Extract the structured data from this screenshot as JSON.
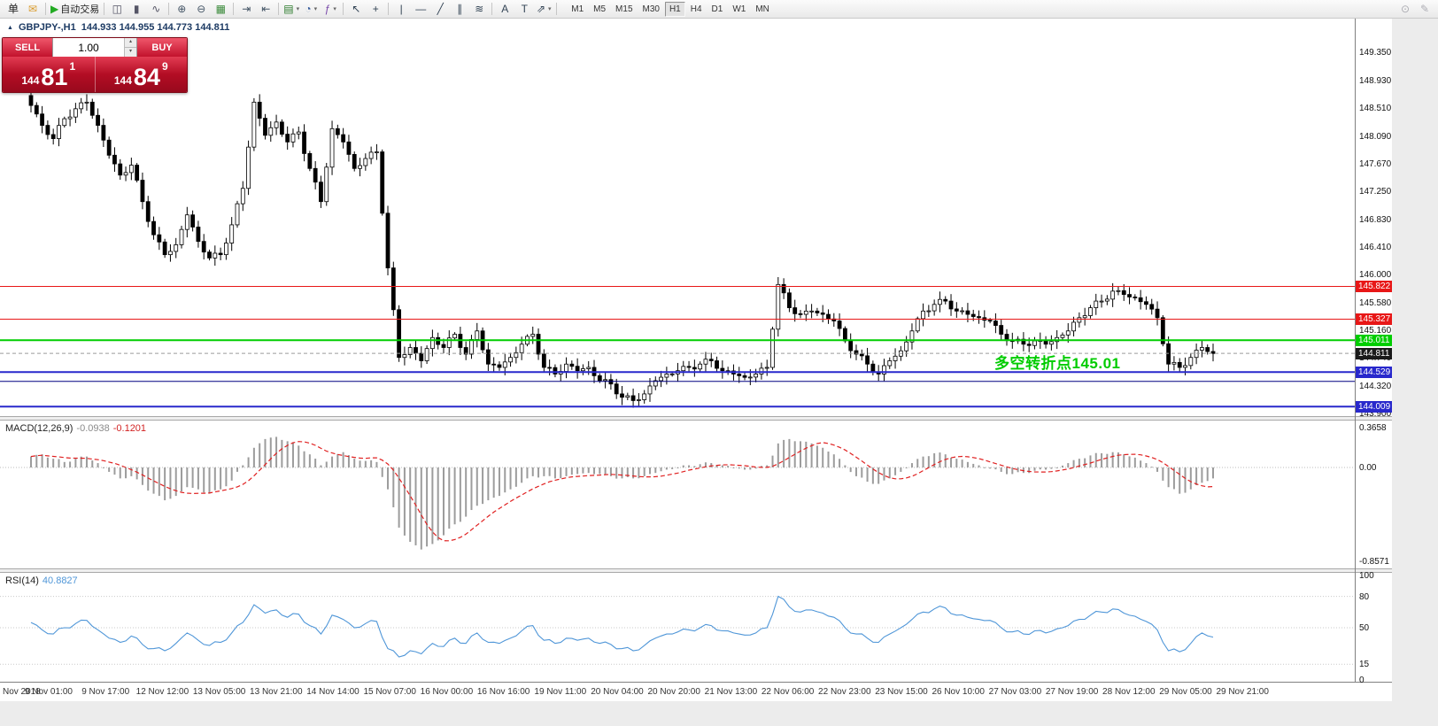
{
  "toolbar": {
    "items": [
      {
        "name": "new-order-button",
        "icon": "单",
        "color": "#222"
      },
      {
        "name": "mail-button",
        "icon": "✉",
        "color": "#d99a2b"
      },
      {
        "sep": true
      },
      {
        "name": "autotrading-button",
        "icon": "▶",
        "color": "#22aa22",
        "label": "自动交易"
      },
      {
        "sep": true
      },
      {
        "name": "bar-chart-button",
        "icon": "◫",
        "color": "#556"
      },
      {
        "name": "candlestick-chart-button",
        "icon": "▮",
        "color": "#556"
      },
      {
        "name": "line-chart-button",
        "icon": "∿",
        "color": "#556"
      },
      {
        "sep": true
      },
      {
        "name": "zoom-in-button",
        "icon": "⊕",
        "color": "#456"
      },
      {
        "name": "zoom-out-button",
        "icon": "⊖",
        "color": "#456"
      },
      {
        "name": "tile-windows-button",
        "icon": "▦",
        "color": "#3a8a3a"
      },
      {
        "sep": true
      },
      {
        "name": "auto-scroll-button",
        "icon": "⇥",
        "color": "#456"
      },
      {
        "name": "chart-shift-button",
        "icon": "⇤",
        "color": "#456"
      },
      {
        "sep": true
      },
      {
        "name": "new-chart-button",
        "icon": "▤",
        "color": "#2a7a2a",
        "dropdown": true
      },
      {
        "name": "profiles-button",
        "icon": "◔",
        "color": "#345a9a",
        "dropdown": true
      },
      {
        "name": "indicators-button",
        "icon": "ƒ",
        "color": "#7a4aaa",
        "dropdown": true
      },
      {
        "sep": true
      },
      {
        "name": "cursor-button",
        "icon": "↖",
        "color": "#345"
      },
      {
        "name": "crosshair-button",
        "icon": "+",
        "color": "#345"
      },
      {
        "sep": true
      },
      {
        "name": "vertical-line-button",
        "icon": "|",
        "color": "#345"
      },
      {
        "name": "horizontal-line-button",
        "icon": "—",
        "color": "#345"
      },
      {
        "name": "trendline-button",
        "icon": "╱",
        "color": "#345"
      },
      {
        "name": "equidistant-channel-button",
        "icon": "∥",
        "color": "#345"
      },
      {
        "name": "fibonacci-button",
        "icon": "≋",
        "color": "#345"
      },
      {
        "sep": true
      },
      {
        "name": "text-button",
        "icon": "A",
        "color": "#345"
      },
      {
        "name": "text-label-button",
        "icon": "T",
        "color": "#345"
      },
      {
        "name": "arrows-button",
        "icon": "⇗",
        "color": "#345",
        "dropdown": true
      },
      {
        "sep": true
      }
    ],
    "timeframes": [
      "M1",
      "M5",
      "M15",
      "M30",
      "H1",
      "H4",
      "D1",
      "W1",
      "MN"
    ],
    "active_timeframe": "H1",
    "right_items": [
      {
        "name": "search-button",
        "icon": "⊙"
      },
      {
        "name": "quick-edit-button",
        "icon": "✎"
      }
    ]
  },
  "chart": {
    "title_symbol": "GBPJPY-,H1",
    "title_ohlc": "144.933 144.955 144.773 144.811",
    "annotation": "多空转折点145.01"
  },
  "trade_panel": {
    "sell_label": "SELL",
    "buy_label": "BUY",
    "volume": "1.00",
    "sell_price": {
      "prefix": "144",
      "main": "81",
      "sup": "1"
    },
    "buy_price": {
      "prefix": "144",
      "main": "84",
      "sup": "9"
    }
  },
  "macd_panel": {
    "title": "MACD(12,26,9)",
    "main_value": "-0.0938",
    "signal_value": "-0.1201"
  },
  "rsi_panel": {
    "title": "RSI(14)",
    "value": "40.8827"
  },
  "chart_data": {
    "type": "candlestick",
    "symbol": "GBPJPY-",
    "timeframe": "H1",
    "price_axis": [
      "149.350",
      "148.930",
      "148.510",
      "148.090",
      "147.670",
      "147.250",
      "146.830",
      "146.410",
      "146.000",
      "145.580",
      "145.160",
      "144.740",
      "144.320",
      "143.900"
    ],
    "x_axis": [
      "Nov 2018",
      "9 Nov 01:00",
      "9 Nov 17:00",
      "12 Nov 12:00",
      "13 Nov 05:00",
      "13 Nov 21:00",
      "14 Nov 14:00",
      "15 Nov 07:00",
      "16 Nov 00:00",
      "16 Nov 16:00",
      "19 Nov 11:00",
      "20 Nov 04:00",
      "20 Nov 20:00",
      "21 Nov 13:00",
      "22 Nov 06:00",
      "22 Nov 23:00",
      "23 Nov 15:00",
      "26 Nov 10:00",
      "27 Nov 03:00",
      "27 Nov 19:00",
      "28 Nov 12:00",
      "29 Nov 05:00",
      "29 Nov 21:00"
    ],
    "closes": [
      148.55,
      148.25,
      148.05,
      148.35,
      148.5,
      148.6,
      148.25,
      147.8,
      147.5,
      147.65,
      147.1,
      146.6,
      146.3,
      146.45,
      146.9,
      146.5,
      146.25,
      146.3,
      146.75,
      147.3,
      148.6,
      148.1,
      148.3,
      148.0,
      148.15,
      147.6,
      147.1,
      148.2,
      148.0,
      147.6,
      147.75,
      147.85,
      146.1,
      144.75,
      144.9,
      144.7,
      145.05,
      144.9,
      145.1,
      144.8,
      145.15,
      144.65,
      144.6,
      144.75,
      144.95,
      145.1,
      144.6,
      144.5,
      144.65,
      144.55,
      144.6,
      144.4,
      144.35,
      144.15,
      144.1,
      144.2,
      144.4,
      144.5,
      144.55,
      144.6,
      144.65,
      144.7,
      144.55,
      144.5,
      144.45,
      144.5,
      144.6,
      145.85,
      145.5,
      145.4,
      145.45,
      145.4,
      145.3,
      145.0,
      144.8,
      144.65,
      144.5,
      144.7,
      144.85,
      145.15,
      145.45,
      145.55,
      145.6,
      145.45,
      145.4,
      145.35,
      145.3,
      145.1,
      145.0,
      144.95,
      145.0,
      144.95,
      145.05,
      145.15,
      145.35,
      145.5,
      145.6,
      145.75,
      145.7,
      145.65,
      145.55,
      145.35,
      144.65,
      144.6,
      144.75,
      144.9,
      144.81
    ],
    "levels": [
      {
        "value": 145.822,
        "color": "#e81717",
        "width": 1,
        "label": "145.822",
        "label_bg": "#e81717",
        "label_color": "#fff"
      },
      {
        "value": 145.327,
        "color": "#e81717",
        "width": 1,
        "label": "145.327",
        "label_bg": "#e81717",
        "label_color": "#fff"
      },
      {
        "value": 145.011,
        "color": "#00ce00",
        "width": 2,
        "label": "145.011",
        "label_bg": "#00ce00",
        "label_color": "#fff"
      },
      {
        "value": 144.811,
        "color": "#9a9a9a",
        "width": 1,
        "dash": true,
        "label": "144.811",
        "label_bg": "#1a1a1a",
        "label_color": "#fff"
      },
      {
        "value": 144.529,
        "color": "#2828cc",
        "width": 2,
        "label": "144.529",
        "label_bg": "#2828cc",
        "label_color": "#fff"
      },
      {
        "value": 144.39,
        "color": "#000080",
        "width": 1
      },
      {
        "value": 144.009,
        "color": "#2828cc",
        "width": 2,
        "label": "144.009",
        "label_bg": "#2828cc",
        "label_color": "#fff"
      }
    ],
    "macd": {
      "params": "12,26,9",
      "axis": [
        {
          "text": "0.3658",
          "value": 0.3658
        },
        {
          "text": "0.00",
          "value": 0
        },
        {
          "text": "-0.8571",
          "value": -0.8571
        }
      ],
      "values": [
        0.1,
        0.12,
        0.08,
        0.05,
        0.08,
        0.1,
        0.04,
        -0.04,
        -0.1,
        -0.08,
        -0.16,
        -0.24,
        -0.3,
        -0.26,
        -0.18,
        -0.2,
        -0.24,
        -0.2,
        -0.12,
        0.02,
        0.18,
        0.26,
        0.28,
        0.24,
        0.2,
        0.12,
        0.02,
        0.1,
        0.14,
        0.08,
        0.06,
        0.05,
        -0.2,
        -0.55,
        -0.68,
        -0.75,
        -0.7,
        -0.62,
        -0.52,
        -0.45,
        -0.35,
        -0.3,
        -0.26,
        -0.2,
        -0.14,
        -0.08,
        -0.08,
        -0.1,
        -0.08,
        -0.06,
        -0.05,
        -0.06,
        -0.08,
        -0.1,
        -0.1,
        -0.08,
        -0.05,
        -0.02,
        0.0,
        0.02,
        0.03,
        0.04,
        0.02,
        0.0,
        -0.02,
        -0.01,
        0.02,
        0.22,
        0.26,
        0.24,
        0.22,
        0.18,
        0.12,
        0.02,
        -0.08,
        -0.13,
        -0.15,
        -0.1,
        -0.04,
        0.04,
        0.1,
        0.13,
        0.12,
        0.08,
        0.05,
        0.02,
        -0.01,
        -0.04,
        -0.06,
        -0.05,
        -0.03,
        -0.02,
        0.0,
        0.04,
        0.08,
        0.11,
        0.13,
        0.14,
        0.12,
        0.09,
        0.04,
        -0.04,
        -0.18,
        -0.24,
        -0.2,
        -0.14,
        -0.1
      ]
    },
    "rsi": {
      "params": "14",
      "axis": [
        "100",
        "80",
        "50",
        "15",
        "0"
      ],
      "levels": [
        80,
        50,
        15
      ],
      "values": [
        55,
        48,
        44,
        50,
        54,
        57,
        48,
        40,
        36,
        42,
        34,
        30,
        28,
        35,
        45,
        38,
        33,
        36,
        45,
        55,
        72,
        64,
        67,
        60,
        63,
        52,
        44,
        62,
        58,
        50,
        54,
        56,
        30,
        22,
        28,
        25,
        35,
        32,
        40,
        35,
        45,
        36,
        35,
        40,
        47,
        52,
        38,
        35,
        40,
        38,
        40,
        35,
        34,
        30,
        28,
        33,
        40,
        44,
        46,
        48,
        50,
        52,
        47,
        45,
        43,
        45,
        50,
        80,
        70,
        65,
        67,
        64,
        60,
        50,
        44,
        40,
        36,
        44,
        50,
        58,
        65,
        68,
        69,
        62,
        60,
        58,
        57,
        50,
        46,
        44,
        47,
        45,
        49,
        52,
        58,
        62,
        65,
        68,
        64,
        61,
        56,
        48,
        28,
        27,
        35,
        45,
        41
      ]
    }
  }
}
